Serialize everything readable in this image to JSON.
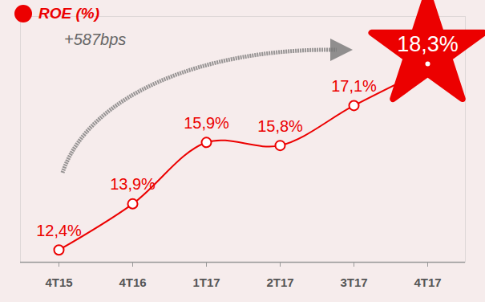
{
  "chart_data": {
    "type": "line",
    "title": "ROE (%)",
    "annotation": "+587bps",
    "categories": [
      "4T15",
      "4T16",
      "1T17",
      "2T17",
      "3T17",
      "4T17"
    ],
    "values": [
      12.4,
      13.9,
      15.9,
      15.8,
      17.1,
      18.3
    ],
    "value_labels": [
      "12,4%",
      "13,9%",
      "15,9%",
      "15,8%",
      "17,1%",
      "18,3%"
    ],
    "color": "#ec0000",
    "ylim": [
      12,
      20
    ],
    "data_labels": true,
    "tick_labels": "x",
    "marker": "circle",
    "line_style": "solid"
  }
}
